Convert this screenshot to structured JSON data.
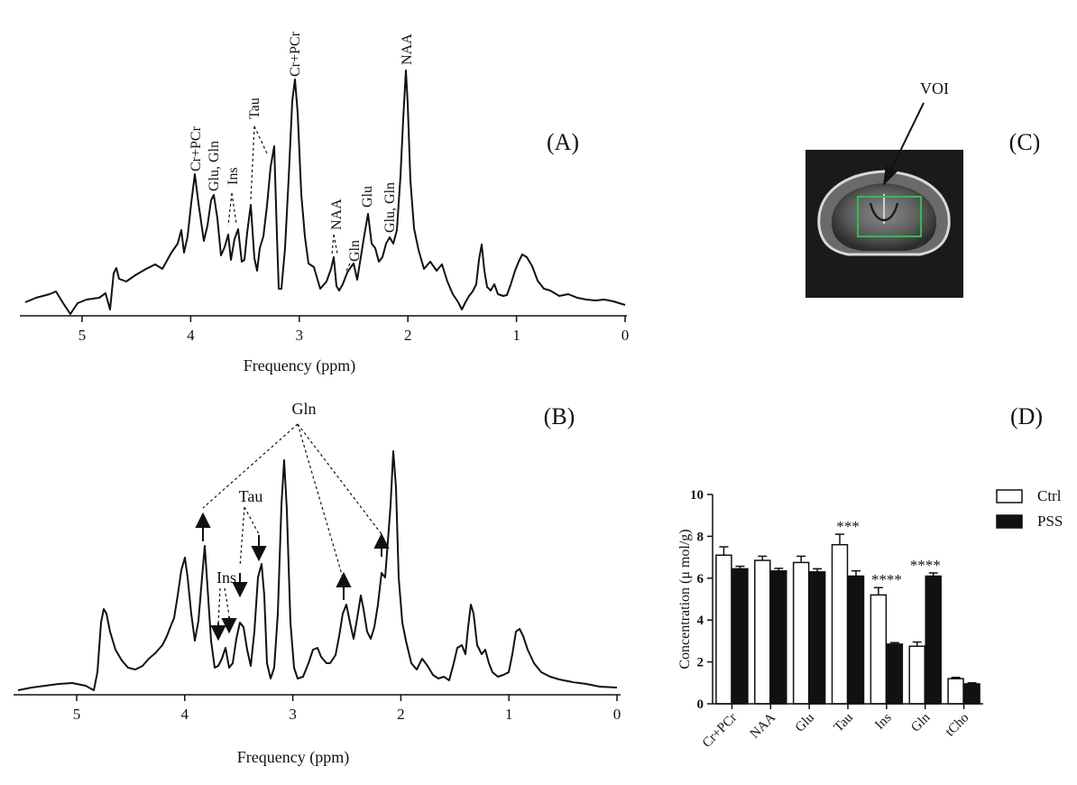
{
  "panels": {
    "a": {
      "label": "(A)",
      "xlabel": "Frequency (ppm)",
      "ticks": [
        "5",
        "4",
        "3",
        "2",
        "1",
        "0"
      ],
      "peak_labels": [
        "Cr+PCr",
        "Glu, Gln",
        "Ins",
        "Tau",
        "Cr+PCr",
        "NAA",
        "Gln",
        "Glu",
        "Glu, Gln",
        "NAA"
      ]
    },
    "b": {
      "label": "(B)",
      "xlabel": "Frequency (ppm)",
      "ticks": [
        "5",
        "4",
        "3",
        "2",
        "1",
        "0"
      ],
      "peak_labels": [
        "Gln",
        "Tau",
        "Ins"
      ]
    },
    "c": {
      "label": "(C)",
      "voi_label": "VOI",
      "box_color": "#2fbf4a"
    },
    "d": {
      "label": "(D)"
    }
  },
  "chart_data": [
    {
      "type": "line",
      "panel": "A",
      "xlabel": "Frequency (ppm)",
      "xlim": [
        5.5,
        0
      ],
      "peaks_ppm": [
        {
          "ppm": 3.93,
          "label": "Cr+PCr"
        },
        {
          "ppm": 3.77,
          "label": "Glu, Gln"
        },
        {
          "ppm": 3.63,
          "label": "Ins"
        },
        {
          "ppm": 3.42,
          "label": "Tau"
        },
        {
          "ppm": 3.03,
          "label": "Cr+PCr"
        },
        {
          "ppm": 2.68,
          "label": "NAA"
        },
        {
          "ppm": 2.45,
          "label": "Gln"
        },
        {
          "ppm": 2.35,
          "label": "Glu"
        },
        {
          "ppm": 2.14,
          "label": "Glu, Gln"
        },
        {
          "ppm": 2.01,
          "label": "NAA"
        }
      ]
    },
    {
      "type": "line",
      "panel": "B",
      "xlabel": "Frequency (ppm)",
      "xlim": [
        5.5,
        0
      ],
      "peaks_ppm": [
        {
          "ppm": 3.77,
          "label": "Gln",
          "change": "up"
        },
        {
          "ppm": 2.45,
          "label": "Gln",
          "change": "up"
        },
        {
          "ppm": 2.14,
          "label": "Gln",
          "change": "up"
        },
        {
          "ppm": 3.42,
          "label": "Tau",
          "change": "down"
        },
        {
          "ppm": 3.25,
          "label": "Tau",
          "change": "down"
        },
        {
          "ppm": 3.63,
          "label": "Ins",
          "change": "down"
        },
        {
          "ppm": 3.53,
          "label": "Ins",
          "change": "down"
        }
      ]
    },
    {
      "type": "bar",
      "panel": "D",
      "ylabel": "Concentration (μ mol/g)",
      "ylim": [
        0,
        10
      ],
      "yticks": [
        "0",
        "2",
        "4",
        "6",
        "8",
        "10"
      ],
      "categories": [
        "Cr+PCr",
        "NAA",
        "Glu",
        "Tau",
        "Ins",
        "Gln",
        "tCho"
      ],
      "series": [
        {
          "name": "Ctrl",
          "color": "#ffffff",
          "values": [
            7.1,
            6.85,
            6.75,
            7.6,
            5.2,
            2.75,
            1.2
          ],
          "errors": [
            0.4,
            0.2,
            0.3,
            0.5,
            0.35,
            0.2,
            0.06
          ]
        },
        {
          "name": "PSS",
          "color": "#111111",
          "values": [
            6.45,
            6.35,
            6.3,
            6.1,
            2.85,
            6.1,
            0.95
          ],
          "errors": [
            0.12,
            0.12,
            0.15,
            0.25,
            0.07,
            0.15,
            0.05
          ]
        }
      ],
      "significance": [
        "",
        "",
        "",
        "***",
        "****",
        "****",
        ""
      ]
    }
  ]
}
